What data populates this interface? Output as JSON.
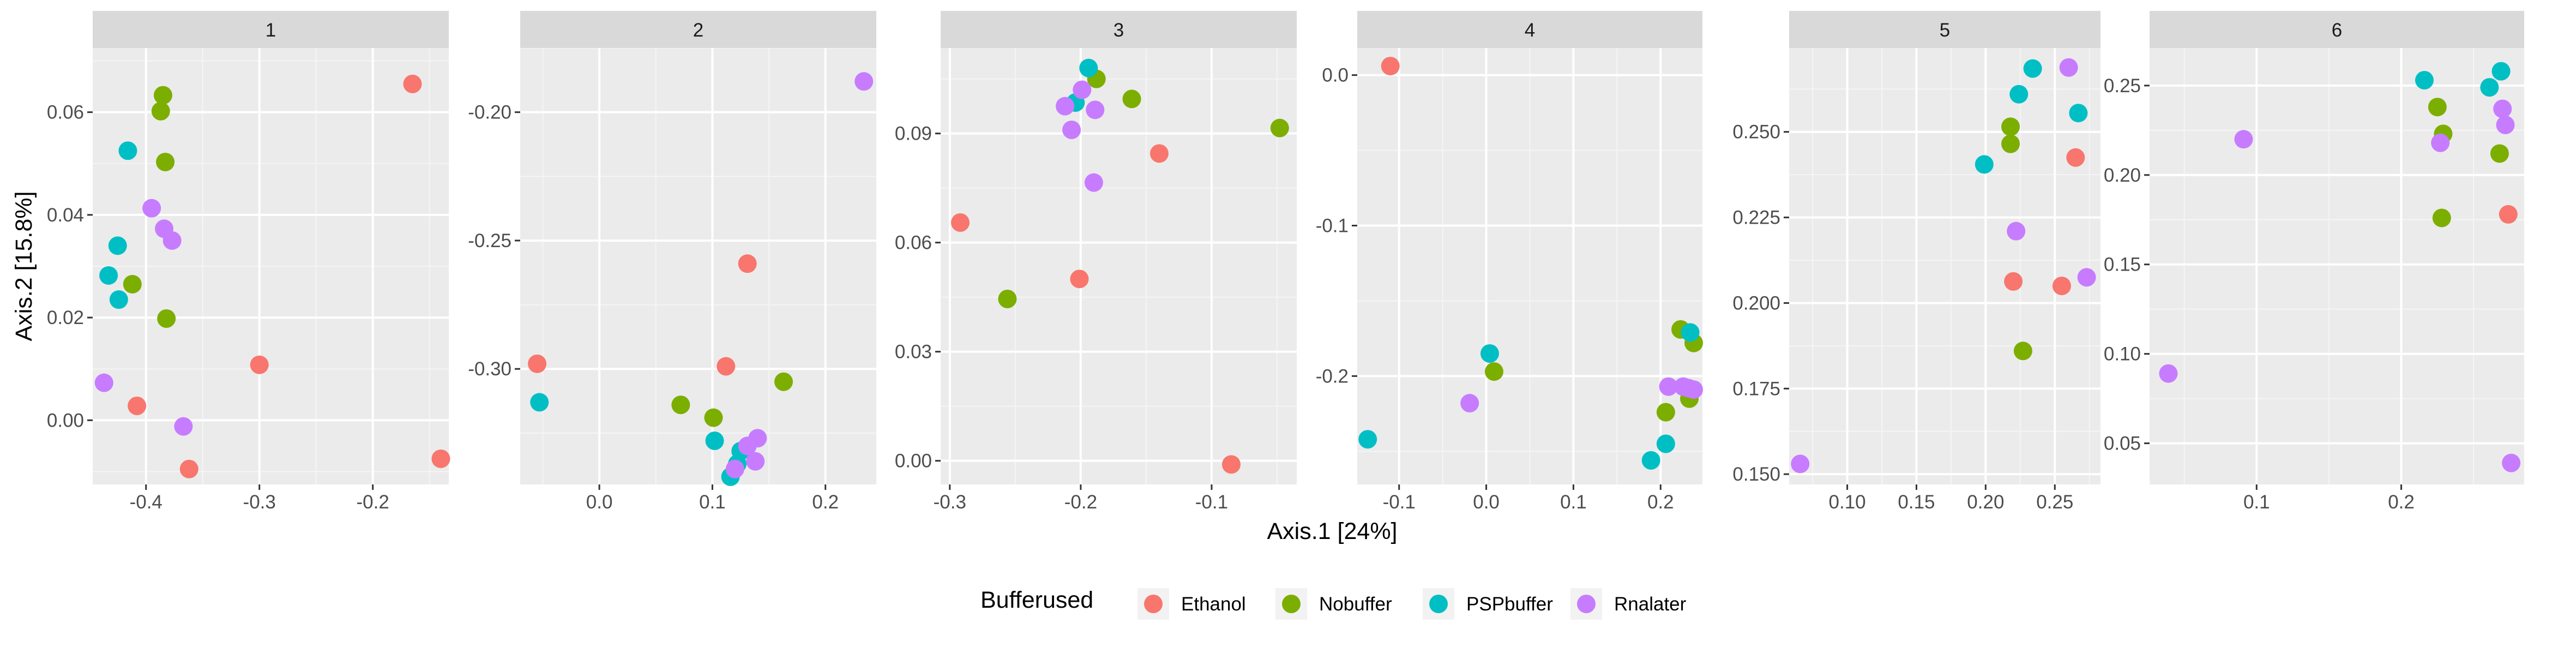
{
  "colors": {
    "panel_bg": "#EBEBEB",
    "grid_major": "#FFFFFF",
    "strip_bg": "#D9D9D9",
    "tick_text": "#4D4D4D",
    "axis_title": "#000000",
    "Ethanol": "#F8766D",
    "Nobuffer": "#7CAE00",
    "PSPbuffer": "#00BFC4",
    "Rnalater": "#C77CFF"
  },
  "chart_data": {
    "type": "scatter",
    "facet_by": "cluster",
    "xlabel": "Axis.1   [24%]",
    "ylabel": "Axis.2   [15.8%]",
    "grid": true,
    "scales": "free",
    "legend": {
      "title": "Bufferused",
      "position": "bottom",
      "entries": [
        "Ethanol",
        "Nobuffer",
        "PSPbuffer",
        "Rnalater"
      ]
    },
    "panels": [
      {
        "strip": "1",
        "xlim": [
          -0.447,
          -0.133
        ],
        "ylim": [
          -0.0125,
          0.0725
        ],
        "xticks": [
          -0.4,
          -0.3,
          -0.2
        ],
        "xtick_labels": [
          "-0.4",
          "-0.3",
          "-0.2"
        ],
        "yticks": [
          0.0,
          0.02,
          0.04,
          0.06
        ],
        "ytick_labels": [
          "0.00",
          "0.02",
          "0.04",
          "0.06"
        ],
        "points": [
          {
            "x": -0.165,
            "y": 0.0655,
            "group": "Ethanol"
          },
          {
            "x": -0.3,
            "y": 0.0108,
            "group": "Ethanol"
          },
          {
            "x": -0.408,
            "y": 0.0028,
            "group": "Ethanol"
          },
          {
            "x": -0.362,
            "y": -0.0095,
            "group": "Ethanol"
          },
          {
            "x": -0.14,
            "y": -0.0075,
            "group": "Ethanol"
          },
          {
            "x": -0.385,
            "y": 0.0633,
            "group": "Nobuffer"
          },
          {
            "x": -0.387,
            "y": 0.0602,
            "group": "Nobuffer"
          },
          {
            "x": -0.383,
            "y": 0.0503,
            "group": "Nobuffer"
          },
          {
            "x": -0.412,
            "y": 0.0265,
            "group": "Nobuffer"
          },
          {
            "x": -0.382,
            "y": 0.0198,
            "group": "Nobuffer"
          },
          {
            "x": -0.416,
            "y": 0.0525,
            "group": "PSPbuffer"
          },
          {
            "x": -0.425,
            "y": 0.034,
            "group": "PSPbuffer"
          },
          {
            "x": -0.433,
            "y": 0.0282,
            "group": "PSPbuffer"
          },
          {
            "x": -0.424,
            "y": 0.0235,
            "group": "PSPbuffer"
          },
          {
            "x": -0.395,
            "y": 0.0413,
            "group": "Rnalater"
          },
          {
            "x": -0.384,
            "y": 0.0373,
            "group": "Rnalater"
          },
          {
            "x": -0.377,
            "y": 0.035,
            "group": "Rnalater"
          },
          {
            "x": -0.437,
            "y": 0.0073,
            "group": "Rnalater"
          },
          {
            "x": -0.367,
            "y": -0.0012,
            "group": "Rnalater"
          }
        ]
      },
      {
        "strip": "2",
        "xlim": [
          -0.07,
          0.245
        ],
        "ylim": [
          -0.345,
          -0.175
        ],
        "xticks": [
          0.0,
          0.1,
          0.2
        ],
        "xtick_labels": [
          "0.0",
          "0.1",
          "0.2"
        ],
        "yticks": [
          -0.3,
          -0.25,
          -0.2
        ],
        "ytick_labels": [
          "-0.30",
          "-0.25",
          "-0.20"
        ],
        "points": [
          {
            "x": 0.131,
            "y": -0.259,
            "group": "Ethanol"
          },
          {
            "x": -0.055,
            "y": -0.298,
            "group": "Ethanol"
          },
          {
            "x": 0.112,
            "y": -0.299,
            "group": "Ethanol"
          },
          {
            "x": 0.163,
            "y": -0.305,
            "group": "Nobuffer"
          },
          {
            "x": 0.072,
            "y": -0.314,
            "group": "Nobuffer"
          },
          {
            "x": 0.101,
            "y": -0.319,
            "group": "Nobuffer"
          },
          {
            "x": -0.053,
            "y": -0.313,
            "group": "PSPbuffer"
          },
          {
            "x": 0.102,
            "y": -0.328,
            "group": "PSPbuffer"
          },
          {
            "x": 0.125,
            "y": -0.332,
            "group": "PSPbuffer"
          },
          {
            "x": 0.122,
            "y": -0.337,
            "group": "PSPbuffer"
          },
          {
            "x": 0.116,
            "y": -0.342,
            "group": "PSPbuffer"
          },
          {
            "x": 0.234,
            "y": -0.188,
            "group": "Rnalater"
          },
          {
            "x": 0.14,
            "y": -0.327,
            "group": "Rnalater"
          },
          {
            "x": 0.131,
            "y": -0.33,
            "group": "Rnalater"
          },
          {
            "x": 0.138,
            "y": -0.336,
            "group": "Rnalater"
          },
          {
            "x": 0.12,
            "y": -0.339,
            "group": "Rnalater"
          }
        ]
      },
      {
        "strip": "3",
        "xlim": [
          -0.307,
          -0.035
        ],
        "ylim": [
          -0.0065,
          0.1135
        ],
        "xticks": [
          -0.3,
          -0.2,
          -0.1
        ],
        "xtick_labels": [
          "-0.3",
          "-0.2",
          "-0.1"
        ],
        "yticks": [
          0.0,
          0.03,
          0.06,
          0.09
        ],
        "ytick_labels": [
          "0.00",
          "0.03",
          "0.06",
          "0.09"
        ],
        "points": [
          {
            "x": -0.14,
            "y": 0.0845,
            "group": "Ethanol"
          },
          {
            "x": -0.292,
            "y": 0.0655,
            "group": "Ethanol"
          },
          {
            "x": -0.201,
            "y": 0.05,
            "group": "Ethanol"
          },
          {
            "x": -0.085,
            "y": -0.001,
            "group": "Ethanol"
          },
          {
            "x": -0.188,
            "y": 0.105,
            "group": "Nobuffer"
          },
          {
            "x": -0.161,
            "y": 0.0995,
            "group": "Nobuffer"
          },
          {
            "x": -0.048,
            "y": 0.0915,
            "group": "Nobuffer"
          },
          {
            "x": -0.256,
            "y": 0.0445,
            "group": "Nobuffer"
          },
          {
            "x": -0.194,
            "y": 0.108,
            "group": "PSPbuffer"
          },
          {
            "x": -0.204,
            "y": 0.0985,
            "group": "PSPbuffer"
          },
          {
            "x": -0.199,
            "y": 0.102,
            "group": "Rnalater"
          },
          {
            "x": -0.212,
            "y": 0.0975,
            "group": "Rnalater"
          },
          {
            "x": -0.189,
            "y": 0.0965,
            "group": "Rnalater"
          },
          {
            "x": -0.207,
            "y": 0.091,
            "group": "Rnalater"
          },
          {
            "x": -0.19,
            "y": 0.0765,
            "group": "Rnalater"
          }
        ]
      },
      {
        "strip": "4",
        "xlim": [
          -0.148,
          0.248
        ],
        "ylim": [
          -0.272,
          0.018
        ],
        "xticks": [
          -0.1,
          0.0,
          0.1,
          0.2
        ],
        "xtick_labels": [
          "-0.1",
          "0.0",
          "0.1",
          "0.2"
        ],
        "yticks": [
          -0.2,
          -0.1,
          0.0
        ],
        "ytick_labels": [
          "-0.2",
          "-0.1",
          "0.0"
        ],
        "points": [
          {
            "x": -0.11,
            "y": 0.006,
            "group": "Ethanol"
          },
          {
            "x": 0.009,
            "y": -0.197,
            "group": "Nobuffer"
          },
          {
            "x": 0.223,
            "y": -0.169,
            "group": "Nobuffer"
          },
          {
            "x": 0.238,
            "y": -0.178,
            "group": "Nobuffer"
          },
          {
            "x": 0.233,
            "y": -0.215,
            "group": "Nobuffer"
          },
          {
            "x": 0.206,
            "y": -0.224,
            "group": "Nobuffer"
          },
          {
            "x": 0.004,
            "y": -0.185,
            "group": "PSPbuffer"
          },
          {
            "x": 0.234,
            "y": -0.171,
            "group": "PSPbuffer"
          },
          {
            "x": -0.136,
            "y": -0.242,
            "group": "PSPbuffer"
          },
          {
            "x": 0.206,
            "y": -0.245,
            "group": "PSPbuffer"
          },
          {
            "x": 0.189,
            "y": -0.256,
            "group": "PSPbuffer"
          },
          {
            "x": -0.019,
            "y": -0.218,
            "group": "Rnalater"
          },
          {
            "x": 0.209,
            "y": -0.207,
            "group": "Rnalater"
          },
          {
            "x": 0.226,
            "y": -0.207,
            "group": "Rnalater"
          },
          {
            "x": 0.232,
            "y": -0.208,
            "group": "Rnalater"
          },
          {
            "x": 0.238,
            "y": -0.209,
            "group": "Rnalater"
          }
        ]
      },
      {
        "strip": "5",
        "xlim": [
          0.058,
          0.283
        ],
        "ylim": [
          0.147,
          0.2745
        ],
        "xticks": [
          0.1,
          0.15,
          0.2,
          0.25
        ],
        "xtick_labels": [
          "0.10",
          "0.15",
          "0.20",
          "0.25"
        ],
        "yticks": [
          0.15,
          0.175,
          0.2,
          0.225,
          0.25
        ],
        "ytick_labels": [
          "0.150",
          "0.175",
          "0.200",
          "0.225",
          "0.250"
        ],
        "points": [
          {
            "x": 0.265,
            "y": 0.2425,
            "group": "Ethanol"
          },
          {
            "x": 0.22,
            "y": 0.2063,
            "group": "Ethanol"
          },
          {
            "x": 0.255,
            "y": 0.205,
            "group": "Ethanol"
          },
          {
            "x": 0.218,
            "y": 0.2515,
            "group": "Nobuffer"
          },
          {
            "x": 0.218,
            "y": 0.2465,
            "group": "Nobuffer"
          },
          {
            "x": 0.227,
            "y": 0.186,
            "group": "Nobuffer"
          },
          {
            "x": 0.234,
            "y": 0.2685,
            "group": "PSPbuffer"
          },
          {
            "x": 0.224,
            "y": 0.261,
            "group": "PSPbuffer"
          },
          {
            "x": 0.267,
            "y": 0.2555,
            "group": "PSPbuffer"
          },
          {
            "x": 0.199,
            "y": 0.2405,
            "group": "PSPbuffer"
          },
          {
            "x": 0.26,
            "y": 0.2688,
            "group": "Rnalater"
          },
          {
            "x": 0.222,
            "y": 0.221,
            "group": "Rnalater"
          },
          {
            "x": 0.273,
            "y": 0.2075,
            "group": "Rnalater"
          },
          {
            "x": 0.066,
            "y": 0.153,
            "group": "Rnalater"
          }
        ]
      },
      {
        "strip": "6",
        "xlim": [
          0.026,
          0.285
        ],
        "ylim": [
          0.027,
          0.271
        ],
        "xticks": [
          0.1,
          0.2
        ],
        "xtick_labels": [
          "0.1",
          "0.2"
        ],
        "yticks": [
          0.05,
          0.1,
          0.15,
          0.2,
          0.25
        ],
        "ytick_labels": [
          "0.05",
          "0.10",
          "0.15",
          "0.20",
          "0.25"
        ],
        "points": [
          {
            "x": 0.274,
            "y": 0.178,
            "group": "Ethanol"
          },
          {
            "x": 0.225,
            "y": 0.238,
            "group": "Nobuffer"
          },
          {
            "x": 0.229,
            "y": 0.223,
            "group": "Nobuffer"
          },
          {
            "x": 0.268,
            "y": 0.212,
            "group": "Nobuffer"
          },
          {
            "x": 0.228,
            "y": 0.176,
            "group": "Nobuffer"
          },
          {
            "x": 0.216,
            "y": 0.253,
            "group": "PSPbuffer"
          },
          {
            "x": 0.269,
            "y": 0.258,
            "group": "PSPbuffer"
          },
          {
            "x": 0.261,
            "y": 0.249,
            "group": "PSPbuffer"
          },
          {
            "x": 0.272,
            "y": 0.228,
            "group": "Rnalater"
          },
          {
            "x": 0.227,
            "y": 0.218,
            "group": "Rnalater"
          },
          {
            "x": 0.27,
            "y": 0.237,
            "group": "Rnalater"
          },
          {
            "x": 0.091,
            "y": 0.22,
            "group": "Rnalater"
          },
          {
            "x": 0.039,
            "y": 0.089,
            "group": "Rnalater"
          },
          {
            "x": 0.276,
            "y": 0.039,
            "group": "Rnalater"
          }
        ]
      }
    ]
  }
}
